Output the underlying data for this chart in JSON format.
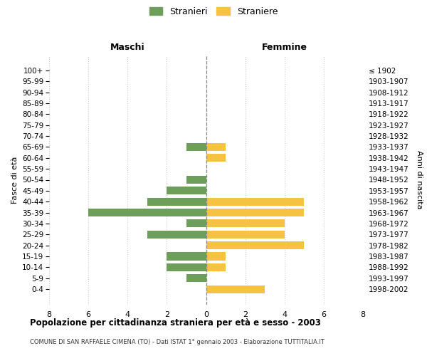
{
  "age_groups": [
    "100+",
    "95-99",
    "90-94",
    "85-89",
    "80-84",
    "75-79",
    "70-74",
    "65-69",
    "60-64",
    "55-59",
    "50-54",
    "45-49",
    "40-44",
    "35-39",
    "30-34",
    "25-29",
    "20-24",
    "15-19",
    "10-14",
    "5-9",
    "0-4"
  ],
  "birth_years": [
    "≤ 1902",
    "1903-1907",
    "1908-1912",
    "1913-1917",
    "1918-1922",
    "1923-1927",
    "1928-1932",
    "1933-1937",
    "1938-1942",
    "1943-1947",
    "1948-1952",
    "1953-1957",
    "1958-1962",
    "1963-1967",
    "1968-1972",
    "1973-1977",
    "1978-1982",
    "1983-1987",
    "1988-1992",
    "1993-1997",
    "1998-2002"
  ],
  "maschi": [
    0,
    0,
    0,
    0,
    0,
    0,
    0,
    1,
    0,
    0,
    1,
    2,
    3,
    6,
    1,
    3,
    0,
    2,
    2,
    1,
    0
  ],
  "femmine": [
    0,
    0,
    0,
    0,
    0,
    0,
    0,
    1,
    1,
    0,
    0,
    0,
    5,
    5,
    4,
    4,
    5,
    1,
    1,
    0,
    3
  ],
  "color_maschi": "#6d9e5a",
  "color_femmine": "#f5c242",
  "title": "Popolazione per cittadinanza straniera per età e sesso - 2003",
  "subtitle": "COMUNE DI SAN RAFFAELE CIMENA (TO) - Dati ISTAT 1° gennaio 2003 - Elaborazione TUTTITALIA.IT",
  "ylabel_left": "Fasce di età",
  "ylabel_right": "Anni di nascita",
  "xlabel_maschi": "Maschi",
  "xlabel_femmine": "Femmine",
  "legend_maschi": "Stranieri",
  "legend_femmine": "Straniere",
  "xlim": 8,
  "background_color": "#ffffff",
  "grid_color": "#cccccc"
}
